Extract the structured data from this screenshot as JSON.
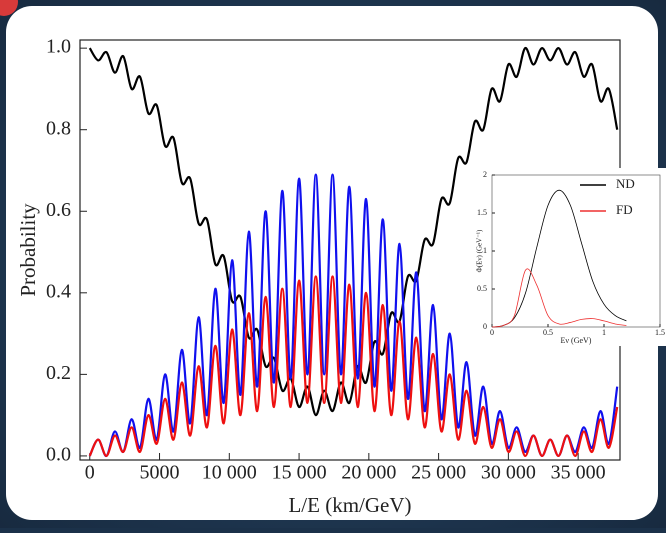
{
  "chart_data": [
    {
      "type": "line",
      "y_label": "Probability",
      "x_label": "L/E (km/GeV)",
      "x": [
        0,
        600,
        1200,
        1800,
        2400,
        3000,
        3600,
        4200,
        4800,
        5400,
        6000,
        6600,
        7200,
        7800,
        8400,
        9000,
        9600,
        10200,
        10800,
        11400,
        12000,
        12600,
        13200,
        13800,
        14400,
        15000,
        15600,
        16200,
        16800,
        17400,
        18000,
        18600,
        19200,
        19800,
        20400,
        21000,
        21600,
        22200,
        22800,
        23400,
        24000,
        24600,
        25200,
        25800,
        26400,
        27000,
        27600,
        28200,
        28800,
        29400,
        30000,
        30600,
        31200,
        31800,
        32400,
        33000,
        33600,
        34200,
        34800,
        35400,
        36000,
        36600,
        37200,
        37800
      ],
      "series": [
        {
          "color": "#000000",
          "values": [
            1.0,
            0.97,
            0.99,
            0.94,
            0.98,
            0.9,
            0.93,
            0.84,
            0.86,
            0.76,
            0.78,
            0.67,
            0.68,
            0.57,
            0.58,
            0.47,
            0.49,
            0.38,
            0.39,
            0.29,
            0.31,
            0.22,
            0.24,
            0.16,
            0.19,
            0.12,
            0.17,
            0.1,
            0.16,
            0.11,
            0.18,
            0.13,
            0.22,
            0.18,
            0.28,
            0.25,
            0.35,
            0.33,
            0.44,
            0.43,
            0.53,
            0.52,
            0.63,
            0.62,
            0.73,
            0.72,
            0.82,
            0.8,
            0.9,
            0.87,
            0.96,
            0.93,
            1.0,
            0.96,
            1.0,
            0.97,
            1.0,
            0.96,
            0.99,
            0.93,
            0.96,
            0.87,
            0.9,
            0.8
          ]
        },
        {
          "color": "#1010ee",
          "values": [
            0,
            0.04,
            0.0,
            0.06,
            0.01,
            0.09,
            0.02,
            0.14,
            0.04,
            0.2,
            0.06,
            0.26,
            0.08,
            0.34,
            0.1,
            0.41,
            0.13,
            0.48,
            0.15,
            0.55,
            0.17,
            0.6,
            0.18,
            0.65,
            0.19,
            0.68,
            0.2,
            0.69,
            0.2,
            0.69,
            0.2,
            0.66,
            0.19,
            0.63,
            0.17,
            0.58,
            0.16,
            0.52,
            0.14,
            0.45,
            0.11,
            0.37,
            0.09,
            0.3,
            0.07,
            0.23,
            0.05,
            0.17,
            0.03,
            0.11,
            0.02,
            0.07,
            0.01,
            0.05,
            0.0,
            0.04,
            0.0,
            0.05,
            0.01,
            0.07,
            0.02,
            0.11,
            0.03,
            0.17
          ]
        },
        {
          "color": "#ee1010",
          "values": [
            0,
            0.04,
            0.0,
            0.05,
            0.01,
            0.07,
            0.01,
            0.1,
            0.03,
            0.14,
            0.04,
            0.18,
            0.05,
            0.22,
            0.07,
            0.27,
            0.08,
            0.31,
            0.1,
            0.35,
            0.11,
            0.39,
            0.12,
            0.41,
            0.12,
            0.43,
            0.13,
            0.44,
            0.13,
            0.44,
            0.13,
            0.42,
            0.12,
            0.4,
            0.11,
            0.37,
            0.1,
            0.33,
            0.09,
            0.29,
            0.07,
            0.25,
            0.06,
            0.2,
            0.04,
            0.16,
            0.03,
            0.12,
            0.02,
            0.09,
            0.01,
            0.06,
            0.0,
            0.05,
            0.0,
            0.04,
            0.0,
            0.05,
            0.0,
            0.06,
            0.01,
            0.09,
            0.02,
            0.12
          ]
        }
      ],
      "xlim": [
        -700,
        38000
      ],
      "ylim": [
        -0.01,
        1.02
      ],
      "xticks": [
        0,
        5000,
        {
          "value": 10000,
          "label": "10 000"
        },
        {
          "value": 15000,
          "label": "15 000"
        },
        {
          "value": 20000,
          "label": "20 000"
        },
        {
          "value": 25000,
          "label": "25 000"
        },
        {
          "value": 30000,
          "label": "30 000"
        },
        {
          "value": 35000,
          "label": "35 000"
        }
      ],
      "yticks": [
        {
          "value": 0,
          "label": "0.0"
        },
        {
          "value": 0.2,
          "label": "0.2"
        },
        {
          "value": 0.4,
          "label": "0.4"
        },
        {
          "value": 0.6,
          "label": "0.6"
        },
        {
          "value": 0.8,
          "label": "0.8"
        },
        {
          "value": 1,
          "label": "1.0"
        }
      ]
    },
    {
      "type": "line",
      "y_label": "Φ(Eν) (GeV⁻¹)",
      "x_label": "Eν (GeV)",
      "x": [
        0,
        0.1,
        0.2,
        0.3,
        0.4,
        0.5,
        0.6,
        0.7,
        0.8,
        0.9,
        1.0,
        1.1,
        1.2
      ],
      "series": [
        {
          "name": "ND",
          "color": "#000000",
          "values": [
            0,
            0.02,
            0.12,
            0.45,
            1.05,
            1.6,
            1.8,
            1.6,
            1.1,
            0.6,
            0.3,
            0.15,
            0.08
          ]
        },
        {
          "name": "FD",
          "color": "#ee3030",
          "values": [
            0,
            0.02,
            0.15,
            0.75,
            0.55,
            0.15,
            0.04,
            0.06,
            0.1,
            0.11,
            0.08,
            0.04,
            0.02
          ]
        }
      ],
      "xlim": [
        0,
        1.5
      ],
      "ylim": [
        0,
        2
      ],
      "xticks": [
        0,
        0.5,
        1,
        1.5
      ],
      "yticks": [
        0,
        0.5,
        1,
        1.5,
        2
      ]
    }
  ]
}
